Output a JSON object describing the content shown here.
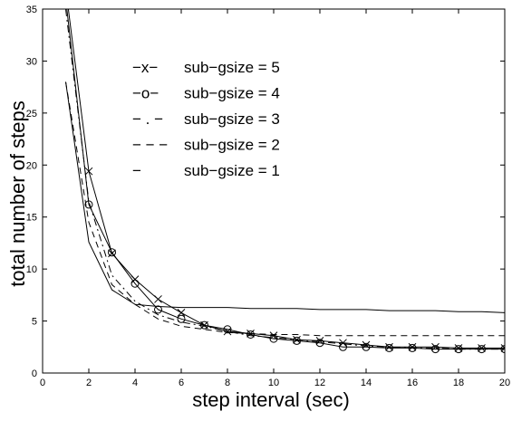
{
  "chart_data": {
    "type": "line",
    "title": "",
    "xlabel": "step interval (sec)",
    "ylabel": "total number of steps",
    "xlim": [
      0,
      20
    ],
    "ylim": [
      0,
      35
    ],
    "x_ticks": [
      "0",
      "2",
      "4",
      "6",
      "8",
      "10",
      "12",
      "14",
      "16",
      "18",
      "20"
    ],
    "y_ticks": [
      "0",
      "5",
      "10",
      "15",
      "20",
      "25",
      "30",
      "35"
    ],
    "grid": false,
    "legend_position": "top-center",
    "series": [
      {
        "name": "sub−gsize = 5",
        "legend_symbol": "−x−",
        "line_style": "solid",
        "marker": "x",
        "x": [
          1,
          2,
          3,
          4,
          5,
          6,
          7,
          8,
          9,
          10,
          11,
          12,
          13,
          14,
          15,
          16,
          17,
          18,
          19,
          20
        ],
        "y": [
          37,
          19.4,
          11.5,
          9.0,
          7.1,
          5.8,
          4.6,
          4.0,
          3.8,
          3.6,
          3.2,
          3.1,
          2.9,
          2.7,
          2.5,
          2.5,
          2.5,
          2.4,
          2.4,
          2.4
        ]
      },
      {
        "name": "sub−gsize = 4",
        "legend_symbol": "−o−",
        "line_style": "solid",
        "marker": "o",
        "x": [
          1,
          2,
          3,
          4,
          5,
          6,
          7,
          8,
          9,
          10,
          11,
          12,
          13,
          14,
          15,
          16,
          17,
          18,
          19,
          20
        ],
        "y": [
          36,
          16.2,
          11.6,
          8.6,
          6.1,
          5.2,
          4.6,
          4.2,
          3.7,
          3.3,
          3.1,
          2.9,
          2.5,
          2.5,
          2.4,
          2.4,
          2.3,
          2.3,
          2.3,
          2.3
        ]
      },
      {
        "name": "sub−gsize = 3",
        "legend_symbol": "− . −",
        "line_style": "dashdot",
        "marker": "none",
        "x": [
          1,
          2,
          3,
          4,
          5,
          6,
          7,
          8,
          9,
          10,
          11,
          12,
          13,
          14,
          15,
          16,
          17,
          18,
          19,
          20
        ],
        "y": [
          35,
          16.5,
          9.4,
          6.9,
          5.6,
          4.9,
          4.5,
          4.0,
          3.6,
          3.4,
          3.2,
          3.0,
          2.8,
          2.6,
          2.5,
          2.4,
          2.4,
          2.3,
          2.3,
          2.3
        ]
      },
      {
        "name": "sub−gsize = 2",
        "legend_symbol": "− − −",
        "line_style": "dashed",
        "marker": "none",
        "x": [
          1,
          2,
          3,
          4,
          5,
          6,
          7,
          8,
          9,
          10,
          11,
          12,
          13,
          14,
          15,
          16,
          17,
          18,
          19,
          20
        ],
        "y": [
          28,
          14.5,
          8.5,
          6.6,
          5.2,
          4.5,
          4.2,
          3.9,
          3.8,
          3.7,
          3.7,
          3.6,
          3.6,
          3.6,
          3.6,
          3.6,
          3.6,
          3.6,
          3.6,
          3.6
        ]
      },
      {
        "name": "sub−gsize = 1",
        "legend_symbol": "−",
        "line_style": "solid",
        "marker": "none",
        "x": [
          1,
          2,
          3,
          4,
          5,
          6,
          7,
          8,
          9,
          10,
          11,
          12,
          13,
          14,
          15,
          16,
          17,
          18,
          19,
          20
        ],
        "y": [
          28,
          12.6,
          8.0,
          6.6,
          6.4,
          6.3,
          6.3,
          6.3,
          6.2,
          6.2,
          6.2,
          6.1,
          6.1,
          6.1,
          6.0,
          6.0,
          6.0,
          5.9,
          5.9,
          5.8
        ]
      }
    ]
  }
}
